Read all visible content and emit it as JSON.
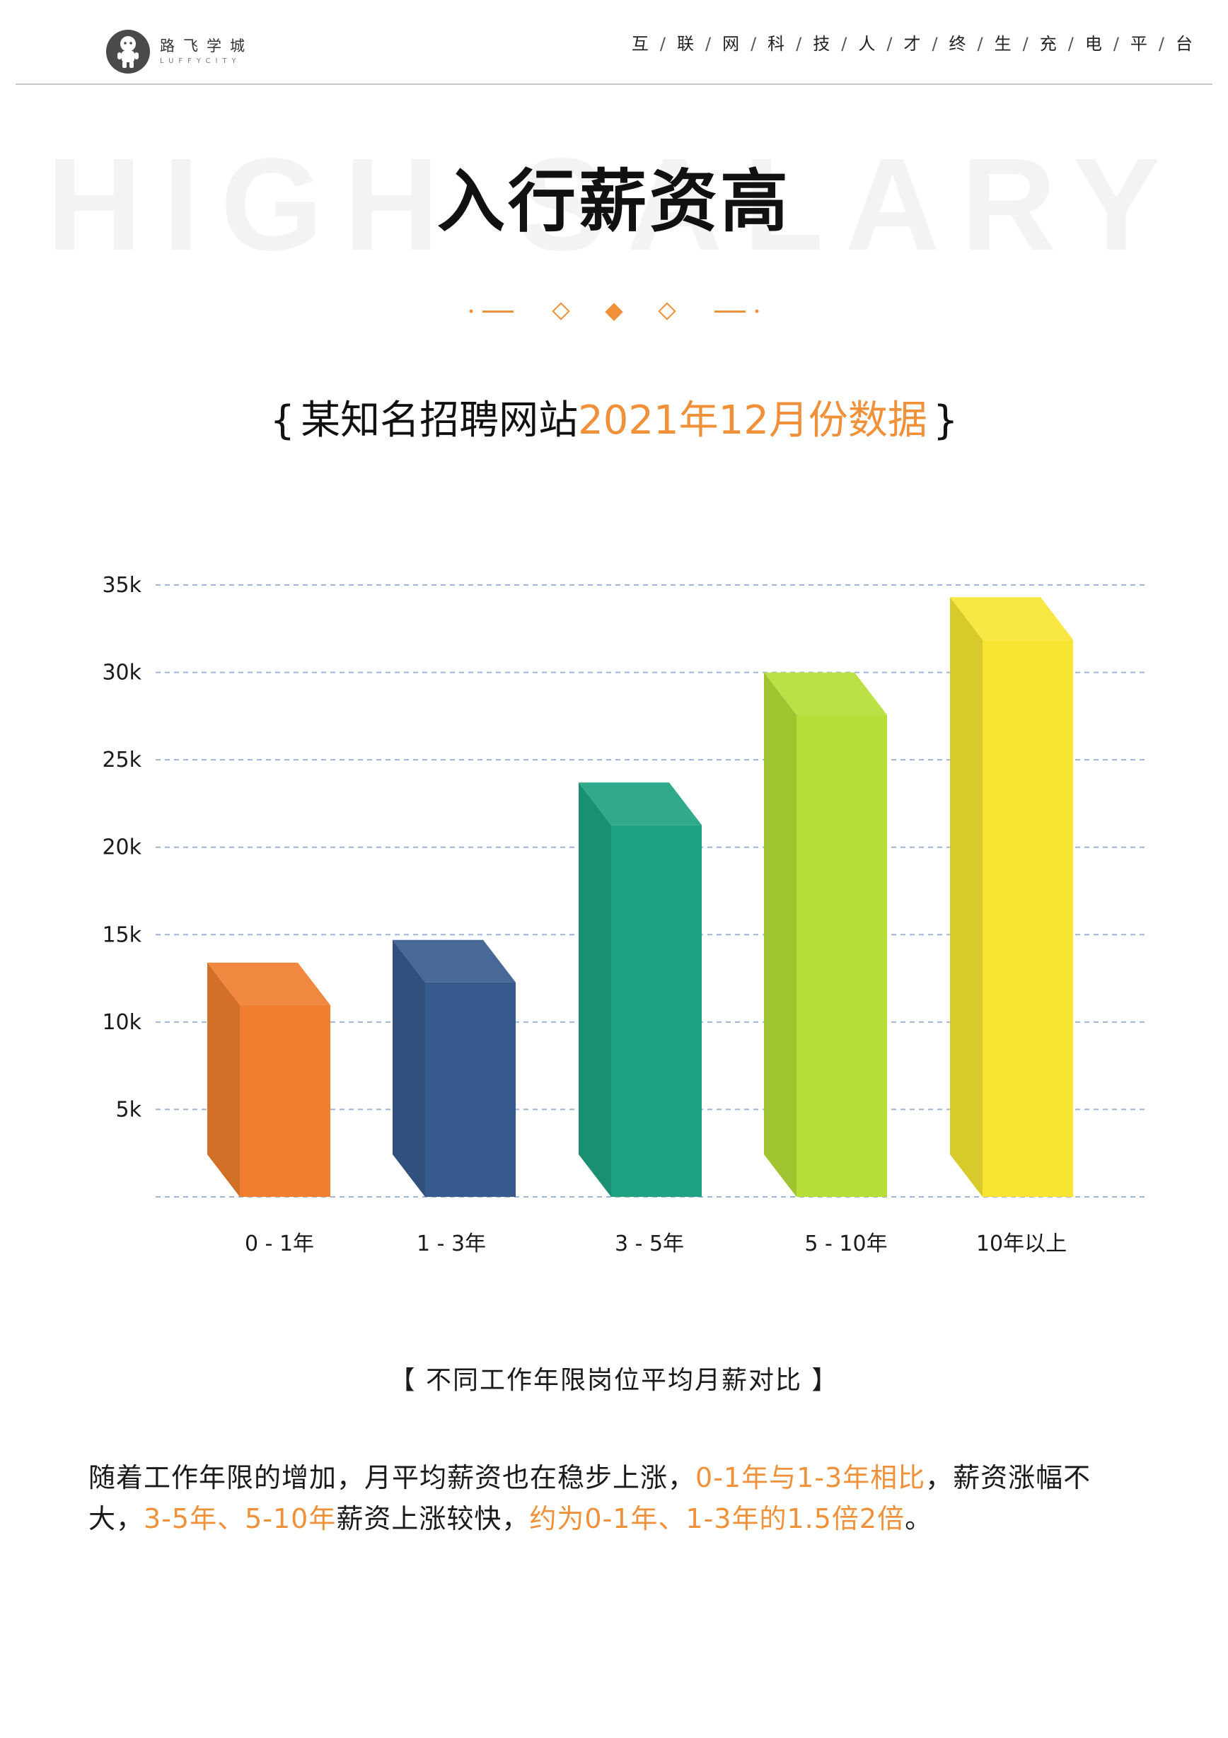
{
  "header": {
    "brand_cn": "路飞学城",
    "brand_en": "LUFFYCITY",
    "slogan_chars": [
      "互",
      "联",
      "网",
      "科",
      "技",
      "人",
      "才",
      "终",
      "生",
      "充",
      "电",
      "平",
      "台"
    ],
    "slogan_separator": "/"
  },
  "title": {
    "watermark": "HIGH SALARY",
    "main": "入行薪资高"
  },
  "subtitle": {
    "brace_open": "{",
    "dark": "某知名招聘网站",
    "accent": "2021年12月份数据",
    "brace_close": "}"
  },
  "colors": {
    "accent": "#f0913a",
    "grid": "#9db6d6",
    "bars": [
      "#ef7f2e",
      "#385b8f",
      "#1fa281",
      "#b6de36",
      "#f7e532"
    ]
  },
  "chart_data": {
    "type": "bar",
    "title": "",
    "xlabel": "",
    "ylabel": "",
    "categories": [
      "0 - 1年",
      "1 - 3年",
      "3 - 5年",
      "5 - 10年",
      "10年以上"
    ],
    "values": [
      13400,
      14700,
      23700,
      30000,
      34300
    ],
    "ylim": [
      0,
      35000
    ],
    "yticks": [
      0,
      5000,
      10000,
      15000,
      20000,
      25000,
      30000,
      35000
    ],
    "ytick_labels": [
      "",
      "5k",
      "10k",
      "15k",
      "20k",
      "25k",
      "30k",
      "35k"
    ],
    "grid": true,
    "legend": "none"
  },
  "caption": "【 不同工作年限岗位平均月薪对比 】",
  "body": {
    "segments": [
      {
        "text": "随着工作年限的增加，月平均薪资也在稳步上涨，",
        "accent": false
      },
      {
        "text": "0-1年与1-3年相比",
        "accent": true
      },
      {
        "text": "，薪资涨幅不大，",
        "accent": false
      },
      {
        "text": "3-5年、5-10年",
        "accent": true
      },
      {
        "text": "薪资上涨较快，",
        "accent": false
      },
      {
        "text": "约为0-1年、1-3年的1.5倍2倍",
        "accent": true
      },
      {
        "text": "。",
        "accent": false
      }
    ]
  }
}
